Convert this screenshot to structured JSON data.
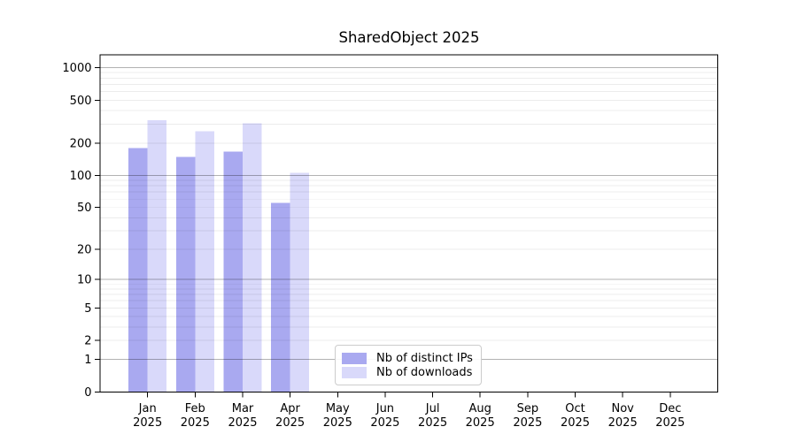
{
  "title": "SharedObject 2025",
  "chart_data": {
    "type": "bar",
    "title": "SharedObject 2025",
    "x_categories": [
      "Jan",
      "Feb",
      "Mar",
      "Apr",
      "May",
      "Jun",
      "Jul",
      "Aug",
      "Sep",
      "Oct",
      "Nov",
      "Dec"
    ],
    "x_year": "2025",
    "series": [
      {
        "name": "Nb of distinct IPs",
        "color": "#a9a9f0",
        "values": [
          180,
          149,
          166,
          55,
          null,
          null,
          null,
          null,
          null,
          null,
          null,
          null
        ]
      },
      {
        "name": "Nb of downloads",
        "color": "#d9d9fa",
        "values": [
          326,
          258,
          304,
          106,
          null,
          null,
          null,
          null,
          null,
          null,
          null,
          null
        ]
      }
    ],
    "yscale": "log10(1+v)",
    "yticks": [
      0,
      1,
      2,
      5,
      10,
      20,
      50,
      100,
      200,
      500,
      1000
    ],
    "ylim": [
      0,
      1316
    ],
    "grid": "horizontal; faint minor lines, gray decade lines at 1/10/100/1000, drawn over bars",
    "legend_position": "inside plot, lower center"
  },
  "legend": {
    "items": [
      {
        "label": "Nb of distinct IPs",
        "color": "#a9a9f0"
      },
      {
        "label": "Nb of downloads",
        "color": "#d9d9fa"
      }
    ]
  },
  "colors": {
    "axis": "#000000",
    "decade_grid": "#b3b3b3",
    "minor_grid": "#ebebeb",
    "background": "#ffffff",
    "legend_border": "#cccccc"
  }
}
